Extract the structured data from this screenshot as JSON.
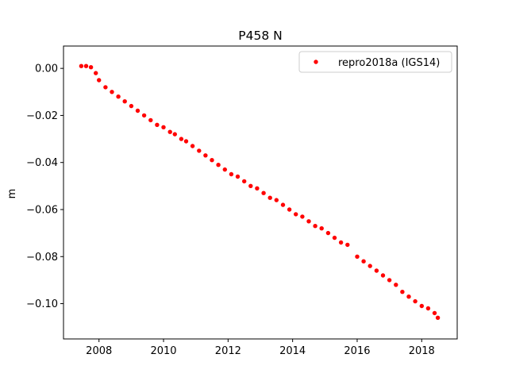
{
  "chart_data": {
    "type": "scatter",
    "title": "P458 N",
    "xlabel": "",
    "ylabel": "m",
    "xlim": [
      2006.9,
      2019.1
    ],
    "ylim": [
      -0.115,
      0.0095
    ],
    "x_ticks": [
      2008,
      2010,
      2012,
      2014,
      2016,
      2018
    ],
    "x_tick_labels": [
      "2008",
      "2010",
      "2012",
      "2014",
      "2016",
      "2018"
    ],
    "y_ticks": [
      0.0,
      -0.02,
      -0.04,
      -0.06,
      -0.08,
      -0.1
    ],
    "y_tick_labels": [
      "0.00",
      "−0.02",
      "−0.04",
      "−0.06",
      "−0.08",
      "−0.10"
    ],
    "grid": false,
    "legend_position": "top-right",
    "series": [
      {
        "name": "repro2018a (IGS14)",
        "color": "#ff0000",
        "marker": "circle",
        "x": [
          2007.45,
          2007.6,
          2007.75,
          2007.9,
          2008.0,
          2008.2,
          2008.4,
          2008.6,
          2008.8,
          2009.0,
          2009.2,
          2009.4,
          2009.6,
          2009.8,
          2010.0,
          2010.2,
          2010.35,
          2010.55,
          2010.7,
          2010.9,
          2011.1,
          2011.3,
          2011.5,
          2011.7,
          2011.9,
          2012.1,
          2012.3,
          2012.5,
          2012.7,
          2012.9,
          2013.1,
          2013.3,
          2013.5,
          2013.7,
          2013.9,
          2014.1,
          2014.3,
          2014.5,
          2014.7,
          2014.9,
          2015.1,
          2015.3,
          2015.5,
          2015.7,
          2016.0,
          2016.2,
          2016.4,
          2016.6,
          2016.8,
          2017.0,
          2017.2,
          2017.4,
          2017.6,
          2017.8,
          2018.0,
          2018.2,
          2018.4,
          2018.5
        ],
        "y": [
          0.001,
          0.001,
          0.0005,
          -0.002,
          -0.005,
          -0.008,
          -0.01,
          -0.012,
          -0.014,
          -0.016,
          -0.018,
          -0.02,
          -0.022,
          -0.024,
          -0.025,
          -0.027,
          -0.028,
          -0.03,
          -0.031,
          -0.033,
          -0.035,
          -0.037,
          -0.039,
          -0.041,
          -0.043,
          -0.045,
          -0.046,
          -0.048,
          -0.05,
          -0.051,
          -0.053,
          -0.055,
          -0.056,
          -0.058,
          -0.06,
          -0.062,
          -0.063,
          -0.065,
          -0.067,
          -0.068,
          -0.07,
          -0.072,
          -0.074,
          -0.075,
          -0.08,
          -0.082,
          -0.084,
          -0.086,
          -0.088,
          -0.09,
          -0.092,
          -0.095,
          -0.097,
          -0.099,
          -0.101,
          -0.102,
          -0.104,
          -0.106
        ]
      }
    ]
  }
}
